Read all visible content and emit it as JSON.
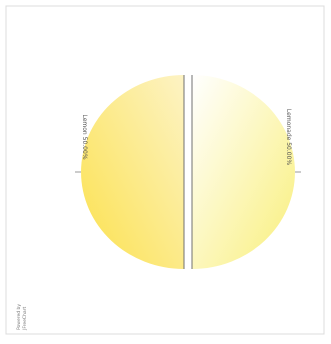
{
  "chart_data": {
    "type": "pie",
    "title": "",
    "slices": [
      {
        "label": "Lemon 50.00%",
        "value": 50.0,
        "color_start": "#fbe14d",
        "color_end": "#fdf3c4"
      },
      {
        "label": "Lemonade 50.00%",
        "value": 50.0,
        "color_start": "#f9ef7a",
        "color_end": "#ffffff"
      }
    ],
    "exploded": true,
    "legend": "none"
  },
  "watermark": {
    "lines": [
      "Powered by",
      "JFreeChart"
    ]
  },
  "colors": {
    "frame": "#dcdcdc",
    "divider": "#707070",
    "label": "#555555"
  }
}
